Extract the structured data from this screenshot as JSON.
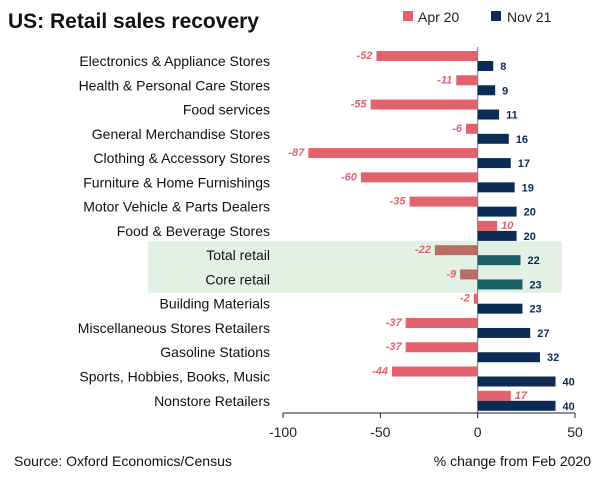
{
  "chart_data": {
    "type": "bar",
    "orientation": "horizontal",
    "title": "US: Retail sales recovery",
    "source": "Source: Oxford Economics/Census",
    "xlabel": "% change from Feb 2020",
    "xlim": [
      -100,
      50
    ],
    "xticks": [
      "-100",
      "-50",
      "0",
      "50"
    ],
    "legend_position": "top-right",
    "colors": {
      "apr": "#e2636e",
      "nov": "#0d2b57",
      "highlight": "#e3f1e4",
      "apr_highlight": "#b86e67",
      "nov_highlight": "#1a5f66"
    },
    "categories": [
      "Electronics & Appliance Stores",
      "Health & Personal Care Stores",
      "Food services",
      "General Merchandise Stores",
      "Clothing & Accessory Stores",
      "Furniture & Home Furnishings",
      "Motor Vehicle & Parts Dealers",
      "Food & Beverage Stores",
      "Total retail",
      "Core retail",
      "Building Materials",
      "Miscellaneous Stores Retailers",
      "Gasoline Stations",
      "Sports, Hobbies, Books, Music",
      "Nonstore Retailers"
    ],
    "highlighted": [
      "Total retail",
      "Core retail"
    ],
    "series": [
      {
        "name": "Apr 20",
        "values": [
          -52,
          -11,
          -55,
          -6,
          -87,
          -60,
          -35,
          10,
          -22,
          -9,
          -2,
          -37,
          -37,
          -44,
          17
        ]
      },
      {
        "name": "Nov 21",
        "values": [
          8,
          9,
          11,
          16,
          17,
          19,
          20,
          20,
          22,
          23,
          23,
          27,
          32,
          40,
          40
        ]
      }
    ]
  }
}
